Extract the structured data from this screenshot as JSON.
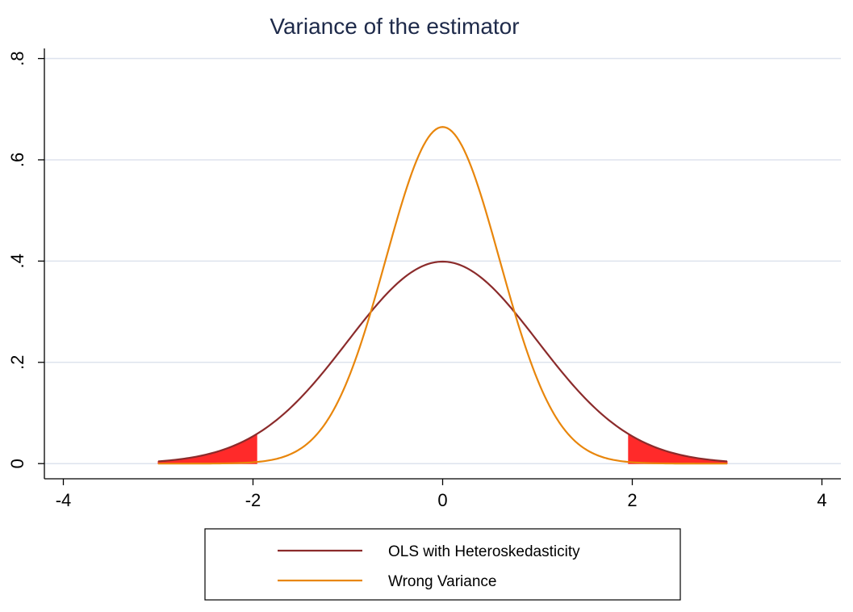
{
  "chart_data": {
    "type": "line",
    "title": "Variance of the estimator",
    "xlabel": "",
    "ylabel": "",
    "xlim": [
      -4.2,
      4.2
    ],
    "ylim": [
      -0.03,
      0.82
    ],
    "x_ticks": [
      -4,
      -2,
      0,
      2,
      4
    ],
    "x_tick_labels": [
      "-4",
      "-2",
      "0",
      "2",
      "4"
    ],
    "y_ticks": [
      0,
      0.2,
      0.4,
      0.6,
      0.8
    ],
    "y_tick_labels": [
      "0",
      ".2",
      ".4",
      ".6",
      ".8"
    ],
    "grid": "horizontal",
    "legend_position": "bottom",
    "series": [
      {
        "name": "OLS with Heteroskedasticity",
        "color": "#8b2b2b",
        "x": [
          -3,
          -2.75,
          -2.5,
          -2.25,
          -2,
          -1.75,
          -1.5,
          -1.25,
          -1,
          -0.75,
          -0.5,
          -0.25,
          0,
          0.25,
          0.5,
          0.75,
          1,
          1.25,
          1.5,
          1.75,
          2,
          2.25,
          2.5,
          2.75,
          3
        ],
        "y": [
          0.0044,
          0.0091,
          0.0175,
          0.0317,
          0.054,
          0.0863,
          0.1295,
          0.1826,
          0.242,
          0.3011,
          0.3521,
          0.3867,
          0.3989,
          0.3867,
          0.3521,
          0.3011,
          0.242,
          0.1826,
          0.1295,
          0.0863,
          0.054,
          0.0317,
          0.0175,
          0.0091,
          0.0044
        ]
      },
      {
        "name": "Wrong Variance",
        "color": "#e8860c",
        "x": [
          -3,
          -2.5,
          -2,
          -1.75,
          -1.5,
          -1.25,
          -1,
          -0.75,
          -0.5,
          -0.25,
          0,
          0.25,
          0.5,
          0.75,
          1,
          1.25,
          1.5,
          1.75,
          2,
          2.5,
          3
        ],
        "y": [
          0.0,
          0.0001,
          0.0024,
          0.0094,
          0.0306,
          0.0825,
          0.1829,
          0.3306,
          0.4874,
          0.6138,
          0.6649,
          0.6138,
          0.4874,
          0.3306,
          0.1829,
          0.0825,
          0.0306,
          0.0094,
          0.0024,
          0.0001,
          0.0
        ]
      }
    ],
    "shaded_tails": {
      "color": "#ff2a2a",
      "series": "OLS with Heteroskedasticity",
      "regions": [
        [
          -3,
          -1.96
        ],
        [
          1.96,
          3
        ]
      ]
    },
    "style": {
      "title_color": "#1e2a4a",
      "grid_color": "#dde3ee",
      "axis_color": "#000000"
    }
  }
}
